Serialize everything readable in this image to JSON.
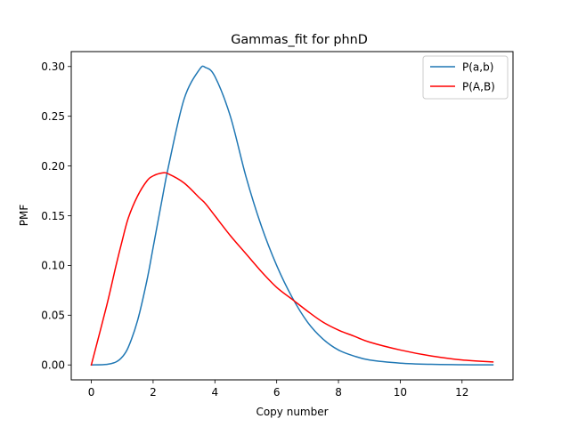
{
  "chart_data": {
    "type": "line",
    "title": "Gammas_fit for phnD",
    "xlabel": "Copy number",
    "ylabel": "PMF",
    "xlim": [
      -0.65,
      13.65
    ],
    "ylim": [
      -0.015,
      0.315
    ],
    "x_ticks": [
      0,
      2,
      4,
      6,
      8,
      10,
      12
    ],
    "y_ticks": [
      0.0,
      0.05,
      0.1,
      0.15,
      0.2,
      0.25,
      0.3
    ],
    "x_tick_labels": [
      "0",
      "2",
      "4",
      "6",
      "8",
      "10",
      "12"
    ],
    "y_tick_labels": [
      "0.00",
      "0.05",
      "0.10",
      "0.15",
      "0.20",
      "0.25",
      "0.30"
    ],
    "grid": false,
    "legend_position": "top-right",
    "x": [
      0,
      0.5,
      0.8,
      1,
      1.2,
      1.5,
      1.8,
      2,
      2.3,
      2.5,
      3,
      3.5,
      3.7,
      4,
      4.5,
      5,
      5.5,
      6,
      6.5,
      7,
      7.5,
      8,
      8.5,
      9,
      10,
      11,
      12,
      13
    ],
    "series": [
      {
        "name": "P(a,b)",
        "color": "#1f77b4",
        "values": [
          0,
          0.0005,
          0.003,
          0.008,
          0.018,
          0.045,
          0.085,
          0.118,
          0.168,
          0.2,
          0.267,
          0.297,
          0.299,
          0.29,
          0.25,
          0.19,
          0.14,
          0.1,
          0.068,
          0.043,
          0.026,
          0.015,
          0.009,
          0.005,
          0.0018,
          0.0006,
          0.0002,
          0.0001
        ]
      },
      {
        "name": "P(A,B)",
        "color": "#ff0000",
        "values": [
          0,
          0.06,
          0.1,
          0.125,
          0.148,
          0.17,
          0.185,
          0.19,
          0.193,
          0.192,
          0.183,
          0.168,
          0.162,
          0.15,
          0.13,
          0.112,
          0.094,
          0.078,
          0.066,
          0.054,
          0.043,
          0.035,
          0.029,
          0.023,
          0.015,
          0.009,
          0.005,
          0.003
        ]
      }
    ]
  }
}
